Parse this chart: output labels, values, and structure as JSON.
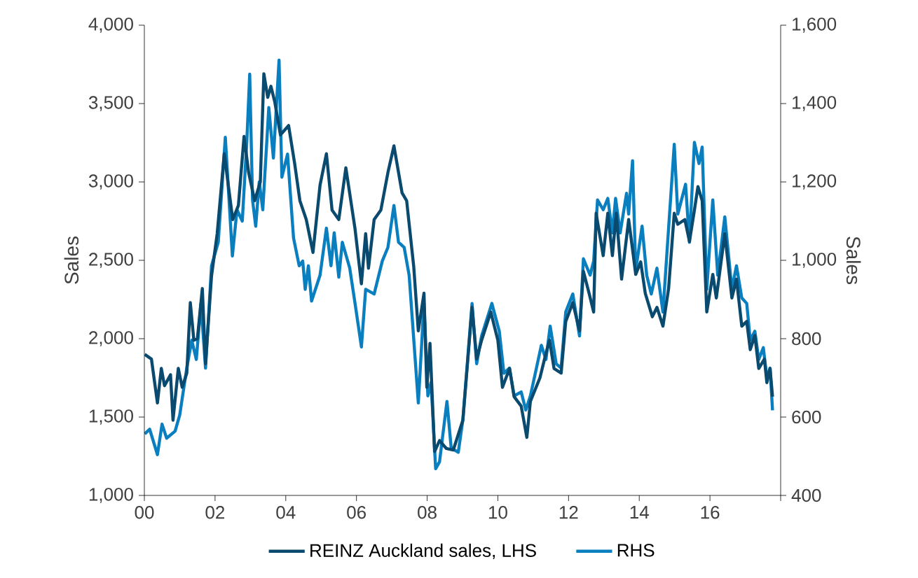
{
  "chart_data": {
    "type": "line",
    "ylabel": "Sales",
    "y2label": "Sales",
    "legend": "bottom",
    "line_style": "solid",
    "xlim": [
      2000,
      2018
    ],
    "xticks": [
      {
        "value": 2000,
        "label": "00"
      },
      {
        "value": 2002,
        "label": "02"
      },
      {
        "value": 2004,
        "label": "04"
      },
      {
        "value": 2006,
        "label": "06"
      },
      {
        "value": 2008,
        "label": "08"
      },
      {
        "value": 2010,
        "label": "10"
      },
      {
        "value": 2012,
        "label": "12"
      },
      {
        "value": 2014,
        "label": "14"
      },
      {
        "value": 2016,
        "label": "16"
      },
      {
        "value": 2018,
        "label": null
      }
    ],
    "ylim": [
      1000,
      4000
    ],
    "yticks": [
      {
        "value": 1000,
        "label": "1,000"
      },
      {
        "value": 1500,
        "label": "1,500"
      },
      {
        "value": 2000,
        "label": "2,000"
      },
      {
        "value": 2500,
        "label": "2,500"
      },
      {
        "value": 3000,
        "label": "3,000"
      },
      {
        "value": 3500,
        "label": "3,500"
      },
      {
        "value": 4000,
        "label": "4,000"
      }
    ],
    "y2lim": [
      400,
      1600
    ],
    "y2ticks": [
      400,
      600,
      800,
      {
        "value": 1000,
        "label": "1,000"
      },
      {
        "value": 1200,
        "label": "1,200"
      },
      {
        "value": 1400,
        "label": "1,400"
      },
      {
        "value": 1600,
        "label": "1,600"
      }
    ],
    "series": [
      {
        "name": "REINZ Auckland sales, LHS",
        "color": "#0b4a6f",
        "axis": "y",
        "x": [
          2000.01,
          2000.2,
          2000.37,
          2000.48,
          2000.57,
          2000.74,
          2000.81,
          2000.96,
          2001.07,
          2001.2,
          2001.3,
          2001.4,
          2001.5,
          2001.64,
          2001.73,
          2001.9,
          2002.06,
          2002.26,
          2002.5,
          2002.66,
          2002.82,
          2002.95,
          2003.12,
          2003.28,
          2003.38,
          2003.49,
          2003.58,
          2003.69,
          2003.85,
          2004.08,
          2004.25,
          2004.4,
          2004.58,
          2004.77,
          2004.97,
          2005.15,
          2005.31,
          2005.5,
          2005.7,
          2005.96,
          2006.14,
          2006.26,
          2006.34,
          2006.5,
          2006.69,
          2006.89,
          2007.06,
          2007.29,
          2007.42,
          2007.62,
          2007.75,
          2007.91,
          2007.99,
          2008.08,
          2008.21,
          2008.35,
          2008.54,
          2008.74,
          2009.01,
          2009.27,
          2009.4,
          2009.54,
          2009.8,
          2010.0,
          2010.13,
          2010.33,
          2010.46,
          2010.66,
          2010.82,
          2010.92,
          2011.19,
          2011.32,
          2011.46,
          2011.59,
          2011.79,
          2011.92,
          2012.12,
          2012.31,
          2012.42,
          2012.58,
          2012.71,
          2012.78,
          2012.98,
          2013.11,
          2013.24,
          2013.35,
          2013.5,
          2013.7,
          2013.77,
          2013.9,
          2014.04,
          2014.17,
          2014.37,
          2014.5,
          2014.67,
          2014.83,
          2014.99,
          2015.09,
          2015.29,
          2015.42,
          2015.56,
          2015.66,
          2015.78,
          2015.91,
          2016.08,
          2016.18,
          2016.42,
          2016.62,
          2016.75,
          2016.9,
          2017.04,
          2017.14,
          2017.27,
          2017.38,
          2017.54,
          2017.61,
          2017.7,
          2017.77
        ],
        "values": [
          1900,
          1870,
          1590,
          1810,
          1700,
          1770,
          1480,
          1810,
          1690,
          1780,
          2230,
          1990,
          2000,
          2320,
          1840,
          2400,
          2670,
          3180,
          2760,
          2850,
          3290,
          3060,
          2880,
          3000,
          3690,
          3540,
          3610,
          3510,
          3300,
          3360,
          3120,
          2880,
          2760,
          2550,
          2980,
          3180,
          2820,
          2760,
          3090,
          2700,
          2350,
          2670,
          2450,
          2760,
          2820,
          3060,
          3230,
          2930,
          2880,
          2460,
          2050,
          2290,
          1690,
          1970,
          1280,
          1350,
          1300,
          1290,
          1480,
          2200,
          1870,
          1990,
          2170,
          1990,
          1690,
          1810,
          1630,
          1570,
          1370,
          1600,
          1750,
          1870,
          1990,
          1810,
          1780,
          2110,
          2230,
          2050,
          2430,
          2290,
          2170,
          2800,
          2530,
          2800,
          2530,
          2800,
          2380,
          2760,
          2640,
          2410,
          2490,
          2290,
          2140,
          2200,
          2080,
          2320,
          2800,
          2730,
          2760,
          2620,
          2820,
          2970,
          2880,
          2170,
          2410,
          2260,
          2670,
          2260,
          2380,
          2080,
          2110,
          1930,
          2020,
          1810,
          1870,
          1720,
          1810,
          1630
        ]
      },
      {
        "name": "RHS",
        "color": "#0a7fbf",
        "axis": "y2",
        "x": [
          2000.01,
          2000.15,
          2000.37,
          2000.5,
          2000.63,
          2000.87,
          2001.0,
          2001.2,
          2001.34,
          2001.47,
          2001.6,
          2001.73,
          2001.9,
          2002.09,
          2002.29,
          2002.49,
          2002.62,
          2002.77,
          2002.9,
          2002.98,
          2003.06,
          2003.15,
          2003.25,
          2003.35,
          2003.52,
          2003.65,
          2003.81,
          2003.89,
          2004.05,
          2004.22,
          2004.38,
          2004.48,
          2004.55,
          2004.64,
          2004.73,
          2004.97,
          2005.15,
          2005.28,
          2005.37,
          2005.5,
          2005.6,
          2005.81,
          2005.96,
          2006.14,
          2006.26,
          2006.5,
          2006.73,
          2006.89,
          2007.06,
          2007.19,
          2007.35,
          2007.49,
          2007.75,
          2007.91,
          2008.02,
          2008.11,
          2008.24,
          2008.35,
          2008.56,
          2008.68,
          2008.88,
          2009.01,
          2009.27,
          2009.4,
          2009.54,
          2009.83,
          2010.04,
          2010.17,
          2010.33,
          2010.46,
          2010.66,
          2010.79,
          2010.92,
          2011.23,
          2011.36,
          2011.48,
          2011.65,
          2011.79,
          2011.92,
          2012.12,
          2012.31,
          2012.42,
          2012.61,
          2012.71,
          2012.82,
          2012.98,
          2013.11,
          2013.24,
          2013.33,
          2013.46,
          2013.64,
          2013.7,
          2013.81,
          2013.9,
          2014.08,
          2014.21,
          2014.34,
          2014.5,
          2014.67,
          2014.99,
          2015.09,
          2015.31,
          2015.42,
          2015.56,
          2015.69,
          2015.78,
          2015.91,
          2016.08,
          2016.22,
          2016.42,
          2016.62,
          2016.75,
          2016.9,
          2017.04,
          2017.14,
          2017.27,
          2017.38,
          2017.51,
          2017.61,
          2017.7,
          2017.77
        ],
        "values": [
          557,
          569,
          504,
          582,
          546,
          564,
          605,
          725,
          796,
          747,
          890,
          725,
          986,
          1046,
          1314,
          1011,
          1129,
          1100,
          1307,
          1475,
          1154,
          1087,
          1200,
          1129,
          1390,
          1261,
          1511,
          1212,
          1271,
          1057,
          986,
          998,
          926,
          986,
          896,
          962,
          1082,
          986,
          1070,
          957,
          1046,
          980,
          890,
          779,
          926,
          914,
          998,
          1033,
          1140,
          1046,
          1033,
          962,
          636,
          890,
          654,
          689,
          468,
          486,
          640,
          521,
          510,
          593,
          890,
          736,
          807,
          890,
          819,
          712,
          725,
          654,
          664,
          618,
          654,
          783,
          747,
          832,
          736,
          725,
          868,
          914,
          807,
          1004,
          962,
          998,
          1154,
          1129,
          1158,
          1070,
          1158,
          1070,
          1171,
          1118,
          1254,
          974,
          1087,
          962,
          914,
          980,
          868,
          1296,
          1118,
          1194,
          1046,
          1301,
          1247,
          1289,
          926,
          1154,
          962,
          1111,
          926,
          986,
          904,
          890,
          796,
          819,
          747,
          777,
          700,
          725,
          617
        ]
      }
    ]
  }
}
